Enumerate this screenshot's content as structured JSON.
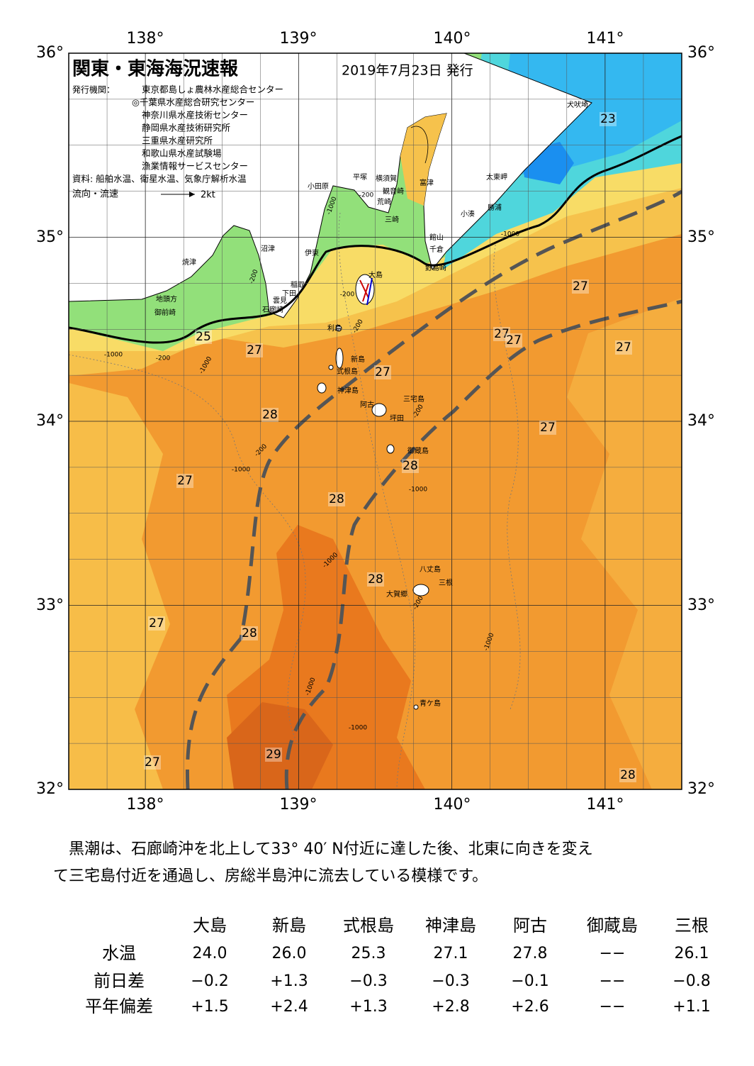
{
  "header": {
    "title": "関東・東海海況速報",
    "date": "2019年7月23日 発行",
    "publisher_label": "発行機関：",
    "publishers": [
      "東京都島しょ農林水産総合センター",
      "◎千葉県水産総合研究センター",
      "神奈川県水産技術センター",
      "静岡県水産技術研究所",
      "三重県水産研究所",
      "和歌山県水産試験場",
      "漁業情報サービスセンター"
    ],
    "source": "資料: 船舶水温、衛星水温、気象庁解析水温",
    "legend_label": "流向・流速",
    "legend_speed": "2kt"
  },
  "map": {
    "lon_labels": [
      "138°",
      "139°",
      "140°",
      "141°"
    ],
    "lat_labels": [
      "36°",
      "35°",
      "34°",
      "33°",
      "32°"
    ],
    "places": [
      "犬吠埼",
      "太東岬",
      "勝浦",
      "小湊",
      "富津",
      "館山",
      "千倉",
      "野島崎",
      "横須賀",
      "観音崎",
      "荒崎",
      "三崎",
      "平塚",
      "小田原",
      "伊東",
      "沼津",
      "焼津",
      "稲取",
      "下田",
      "雲見",
      "石廊崎",
      "地頭方",
      "御前崎",
      "大島",
      "利島",
      "新島",
      "式根島",
      "神津島",
      "阿古",
      "三宅島",
      "坪田",
      "御蔵島",
      "八丈島",
      "三根",
      "大賀郷",
      "青ケ島"
    ],
    "temperatures": [
      23,
      27,
      27,
      27,
      27,
      25,
      27,
      27,
      28,
      27,
      28,
      27,
      28,
      28,
      27,
      28,
      29,
      27,
      28
    ],
    "depth_labels": [
      "-1000",
      "-200",
      "-200",
      "-200",
      "-200",
      "-1000",
      "-200",
      "-1000",
      "-200",
      "-1000",
      "-200",
      "-1000",
      "-1000",
      "-200",
      "-1000",
      "-1000",
      "-1000",
      "-1000"
    ]
  },
  "summary": [
    "黒潮は、石廊崎沖を北上して33° 40′ N付近に達した後、北東に向きを変え",
    "て三宅島付近を通過し、房総半島沖に流去している模様です。"
  ],
  "table": {
    "columns": [
      "大島",
      "新島",
      "式根島",
      "神津島",
      "阿古",
      "御蔵島",
      "三根"
    ],
    "rows": [
      {
        "label": "水温",
        "values": [
          "24.0",
          "26.0",
          "25.3",
          "27.1",
          "27.8",
          "−−",
          "26.1"
        ]
      },
      {
        "label": "前日差",
        "values": [
          "−0.2",
          "+1.3",
          "−0.3",
          "−0.3",
          "−0.1",
          "−−",
          "−0.8"
        ]
      },
      {
        "label": "平年偏差",
        "values": [
          "+1.5",
          "+2.4",
          "+1.3",
          "+2.8",
          "+2.6",
          "−−",
          "+1.1"
        ]
      }
    ]
  }
}
